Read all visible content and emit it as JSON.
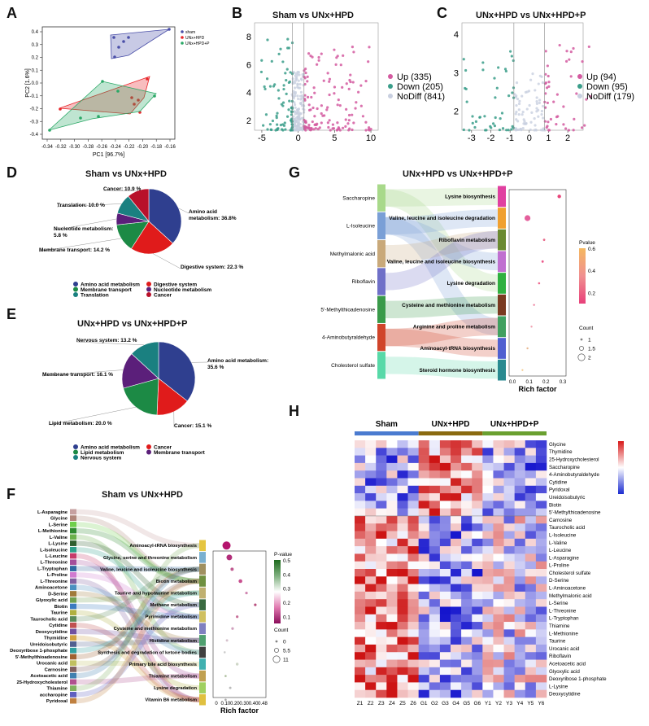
{
  "panels": {
    "A": {
      "letter": "A",
      "xlabel": "PC1 [96.7%]",
      "ylabel": "PC2 [1.6%]",
      "xticks": [
        "-0.34",
        "-0.32",
        "-0.30",
        "-0.28",
        "-0.26",
        "-0.24",
        "-0.22",
        "-0.20",
        "-0.18",
        "-0.16"
      ],
      "yticks": [
        "0.4",
        "0.3",
        "0.2",
        "0.1",
        "0.0",
        "-0.1",
        "-0.2",
        "-0.3",
        "-0.4"
      ],
      "legend": [
        {
          "label": "sham",
          "color": "#4a4fa8"
        },
        {
          "label": "UNx+HPD",
          "color": "#e8262b"
        },
        {
          "label": "UNx+HPD+P",
          "color": "#2aa866"
        }
      ]
    },
    "B": {
      "letter": "B",
      "title": "Sham vs UNx+HPD",
      "xticks": [
        "-5",
        "0",
        "5",
        "10"
      ],
      "yticks": [
        "2",
        "4",
        "6",
        "8"
      ],
      "legend": [
        "Up (335)",
        "Down (205)",
        "NoDiff (841)"
      ]
    },
    "C": {
      "letter": "C",
      "title": "UNx+HPD vs UNx+HPD+P",
      "xticks": [
        "-3",
        "-2",
        "-1",
        "0",
        "1",
        "2"
      ],
      "yticks": [
        "2",
        "3",
        "4"
      ],
      "legend": [
        "Up (94)",
        "Down (95)",
        "NoDiff (179)"
      ]
    },
    "D": {
      "letter": "D",
      "title": "Sham vs UNx+HPD",
      "slices": [
        {
          "name": "Amino acid metabolism",
          "label": "Amino acid metabolism: 36.8%",
          "value": 36.8,
          "color": "#2f3f8f"
        },
        {
          "name": "Digestive system",
          "label": "Digestive system: 22.3 %",
          "value": 22.3,
          "color": "#e01b1b"
        },
        {
          "name": "Membrane transport",
          "label": "Membrane transport: 14.2 %",
          "value": 14.2,
          "color": "#1c8a45"
        },
        {
          "name": "Nucleotide metabolism",
          "label": "Nucleotide metabolism: 5.8 %",
          "value": 5.8,
          "color": "#5b1f7a"
        },
        {
          "name": "Translation",
          "label": "Translation: 10.0 %",
          "value": 10.0,
          "color": "#1a8080"
        },
        {
          "name": "Cancer",
          "label": "Cancer: 10.9 %",
          "value": 10.9,
          "color": "#b8102a"
        }
      ],
      "legend": [
        "Amino acid metabolism",
        "Digestive system",
        "Membrane transport",
        "Nucleotide metabolism",
        "Translation",
        "Cancer"
      ]
    },
    "E": {
      "letter": "E",
      "title": "UNx+HPD vs UNx+HPD+P",
      "slices": [
        {
          "name": "Amino acid metabolism",
          "label": "Amino acid metabolism: 35.6 %",
          "value": 35.6,
          "color": "#2f3f8f"
        },
        {
          "name": "Cancer",
          "label": "Cancer: 15.1 %",
          "value": 15.1,
          "color": "#e01b1b"
        },
        {
          "name": "Lipid metabolism",
          "label": "Lipid metabolism: 20.0 %",
          "value": 20.0,
          "color": "#1c8a45"
        },
        {
          "name": "Membrane transport",
          "label": "Membrane transport: 16.1 %",
          "value": 16.1,
          "color": "#5b1f7a"
        },
        {
          "name": "Nervous system",
          "label": "Nervous system: 13.2 %",
          "value": 13.2,
          "color": "#1a8080"
        }
      ],
      "legend": [
        "Amino acid metabolism",
        "Cancer",
        "Lipid metabolism",
        "Membrane transport",
        "Nervous system"
      ]
    },
    "F": {
      "letter": "F",
      "title": "Sham vs UNx+HPD",
      "metabolites": [
        "L-Asparagine",
        "Glycine",
        "L-Serine",
        "L-Methionine",
        "L-Valine",
        "L-Lysine",
        "L-Isoleucine",
        "L-Leucine",
        "L-Threonine",
        "L-Tryptophan",
        "L-Proline",
        "L-Threonine",
        "Aminoacetone",
        "D-Serine",
        "Glyoxylic acid",
        "Biotin",
        "Taurine",
        "Taurocholic acid",
        "Cytidine",
        "Deoxycytidine",
        "Thymidine",
        "Ureidoisobutyric",
        "Deoxyribose 1-phosphate",
        "5'-Methylthioadenosine",
        "Urocanic acid",
        "Carnosine",
        "Acetoacetic acid",
        "25-Hydroxycholesterol",
        "Thiamine",
        "accharopine",
        "Pyridoxal"
      ],
      "pathways": [
        "Aminoacyl-tRNA biosynthesis",
        "Glycine, serine and threonine metabolism",
        "Valine, leucine and isoleucine biosynthesis",
        "Biotin metabolism",
        "Taurine and hypotaurine metabolism",
        "Methane metabolism",
        "Pyrimidine metabolism",
        "Cysteine and methionine metabolism",
        "Histidine metabolism",
        "Synthesis and degradation of ketone bodies",
        "Primary bile acid biosynthesis",
        "Thiamine metabolism",
        "Lysine degradation",
        "Vitamin B6 metabolism"
      ],
      "pvalue_title": "P-value",
      "pvalue_ticks": [
        "0.5",
        "0.4",
        "0.3",
        "0.2",
        "0.1"
      ],
      "xticks": [
        "0",
        "0.10",
        "0.20",
        "0.30",
        "0.40",
        "0.48"
      ],
      "xlabel": "Rich factor",
      "count_title": "Count",
      "count_ticks": [
        "0",
        "5.5",
        "11"
      ]
    },
    "G": {
      "letter": "G",
      "title": "UNx+HPD vs UNx+HPD+P",
      "metabolites": [
        "Saccharopine",
        "L-Isoleucine",
        "Methylmalonic acid",
        "Riboflavin",
        "5'-Methylthioadenosine",
        "4-Aminobutyraldehyde",
        "Cholesterol sulfate"
      ],
      "pathways": [
        "Lysine biosynthesis",
        "Valine, leucine and isoleucine degradation",
        "Riboflavin metabolism",
        "Valine, leucine and isoleucine biosynthesis",
        "Lysine degradation",
        "Cysteine and methionine metabolism",
        "Arginine and proline metabolism",
        "Aminoacyl-tRNA biosynthesis",
        "Steroid hormone biosynthesis"
      ],
      "pvalue_title": "Pvalue",
      "pvalue_ticks": [
        "0.6",
        "0.4",
        "0.2"
      ],
      "xticks": [
        "0.0",
        "0.1",
        "0.2",
        "0.3"
      ],
      "xlabel": "Rich factor",
      "count_title": "Count",
      "count_ticks": [
        "1",
        "1.5",
        "2"
      ]
    },
    "H": {
      "letter": "H",
      "groups": [
        "Sham",
        "UNx+HPD",
        "UNx+HPD+P"
      ],
      "group_colors": [
        "#4a7bd0",
        "#8a6a10",
        "#6aa030"
      ],
      "columns": [
        "Z1",
        "Z2",
        "Z3",
        "Z4",
        "Z5",
        "Z6",
        "G1",
        "G2",
        "G3",
        "G4",
        "G5",
        "G6",
        "Y1",
        "Y2",
        "Y3",
        "Y4",
        "Y5",
        "Y6"
      ],
      "rows": [
        "Glycine",
        "Thymidine",
        "25-Hydroxycholesterol",
        "Saccharopine",
        "4-Aminobutyraldehyde",
        "Cytidine",
        "Pyridoxal",
        "Ureidoisobutyric",
        "Biotin",
        "5'-Methylthioadenosine",
        "Carnosine",
        "Taurocholic acid",
        "L-Isoleucine",
        "L-Valine",
        "L-Leucine",
        "L-Asparagine",
        "L-Proline",
        "Cholesterol sulfate",
        "D-Serine",
        "L-Aminoacetone",
        "Methylmalonic acid",
        "L-Serine",
        "L-Threonine",
        "L-Tryptophan",
        "Thiamine",
        "L-Methionine",
        "Taurine",
        "Urocanic acid",
        "Riboflavin",
        "Acetoacetic acid",
        "Glyoxylic acid",
        "Deoxyribose 1-phosphate",
        "L-Lysine",
        "Deoxycytidine"
      ]
    }
  },
  "colors": {
    "up": "#d45aa0",
    "down": "#3a9e8a",
    "nodiff": "#c8cfe0"
  }
}
